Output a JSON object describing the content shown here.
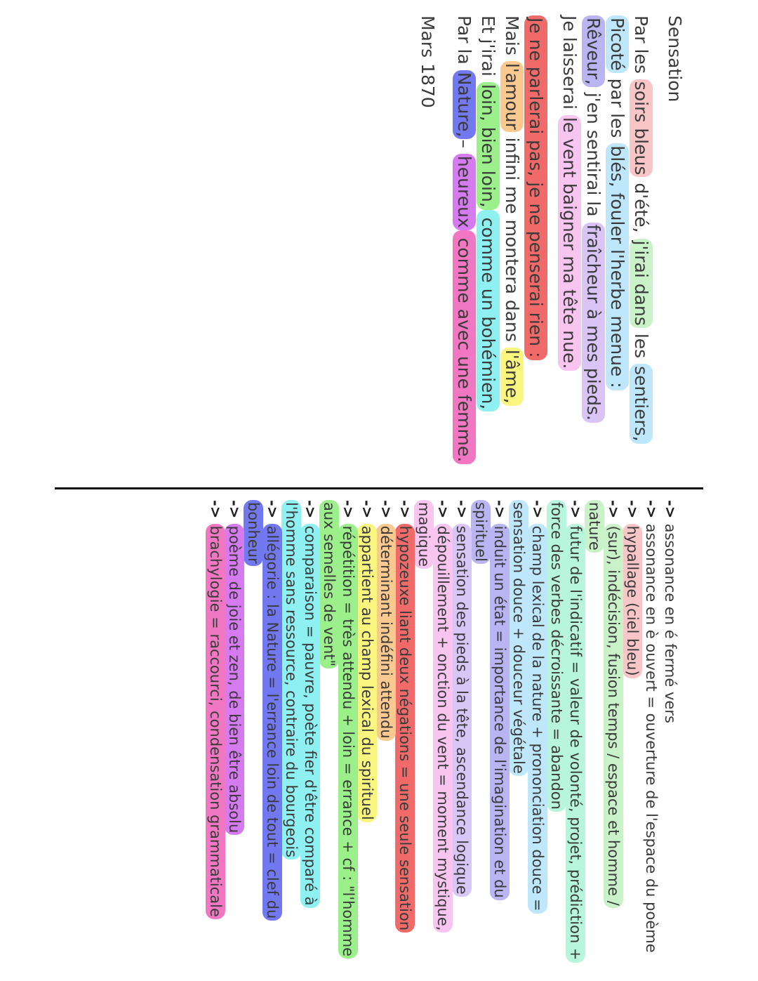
{
  "poem": {
    "title": "Sensation",
    "stanza1": {
      "l1_a": "Par les ",
      "l1_b": "soirs bleus",
      "l1_c": " d'été, ",
      "l1_d": "j'irai dans",
      "l1_e": " les ",
      "l1_f": "sentiers,",
      "l2_a": "Picoté",
      "l2_b": " par les ",
      "l2_c": "blés, fouler l'herbe menue :",
      "l3_a": "Rêveur,",
      "l3_b": " j'en sentirai la ",
      "l3_c": "fraîcheur à mes pieds.",
      "l4_a": "Je laisserai ",
      "l4_b": "le vent baigner ma tête nue."
    },
    "stanza2": {
      "l1": "Je ne parlerai pas, je ne penserai rien :",
      "l2_a": "Mais ",
      "l2_b": "l'amour",
      "l2_c": " infini me montera dans ",
      "l2_d": "l'âme,",
      "l3_a": "Et j'irai ",
      "l3_b": "loin, bien loin,",
      "l3_c": " comme un bohémien,",
      "l4_a": "Par la ",
      "l4_b": "Nature,",
      "l4_c": "– ",
      "l4_d": "heureux",
      "l4_e": " comme avec une femme."
    },
    "date": "Mars 1870"
  },
  "annotations": [
    {
      "lines": [
        "assonance en é fermé vers"
      ],
      "color": "none"
    },
    {
      "lines": [
        "assonance en è ouvert = ouverture de l'espace du poème"
      ],
      "color": "none"
    },
    {
      "lines": [
        "hypallage (ciel bleu)"
      ],
      "color": "pink"
    },
    {
      "lines": [
        "(sur), indécision, fusion temps / espace et homme /",
        "nature"
      ],
      "color": "mint"
    },
    {
      "lines": [
        "futur de l'indicatif = valeur de volonté, projet, prédiction +",
        "force des verbes décroissante = abandon"
      ],
      "color": "teal"
    },
    {
      "lines": [
        "champ lexical de la nature + prononciation douce =",
        "sensation douce + douceur végétale"
      ],
      "color": "sky"
    },
    {
      "lines": [
        "induit un état = importance de l'imagination et du",
        "spirituel"
      ],
      "color": "violet"
    },
    {
      "lines": [
        "sensation des pieds à la tête, ascendance logique"
      ],
      "color": "lilac2"
    },
    {
      "lines": [
        "dépouillement + onction du vent = moment mystique,",
        "magique"
      ],
      "color": "lightpink"
    },
    {
      "lines": [
        "hypozeuxe liant deux négations = une seule sensation"
      ],
      "color": "red"
    },
    {
      "lines": [
        "déterminant indéfini attendu"
      ],
      "color": "orange"
    },
    {
      "lines": [
        "appartient au champ lexical du spirituel"
      ],
      "color": "yellow"
    },
    {
      "lines": [
        "répétition = très attendu + loin = errance + cf : \"l'homme",
        "aux semelles de vent\""
      ],
      "color": "green"
    },
    {
      "lines": [
        "comparaison = pauvre, poète fier d'être comparé à",
        "l'homme sans ressource, contraire du bourgeois"
      ],
      "color": "cyan"
    },
    {
      "lines": [
        "allégorie : la Nature = l'errance loin de tout = clef du",
        "bonheur"
      ],
      "color": "blue"
    },
    {
      "lines": [
        "poème de joie et zen, de bien être absolu"
      ],
      "color": "purple"
    },
    {
      "lines": [
        "brachylogie = raccourci, condensation grammaticale"
      ],
      "color": "hotpink"
    }
  ],
  "arrow_symbol": "->"
}
